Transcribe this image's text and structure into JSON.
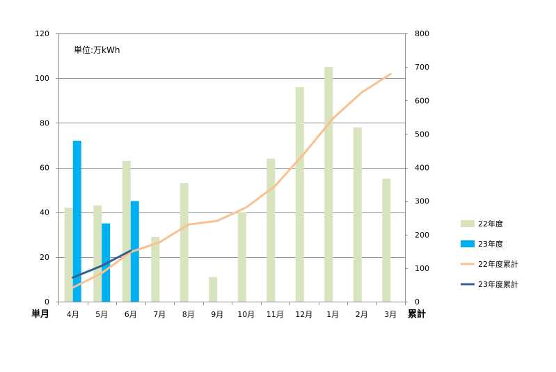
{
  "chart_data": {
    "type": "bar",
    "annotation": "単位:万kWh",
    "left_axis_label": "単月",
    "right_axis_label": "累計",
    "categories": [
      "4月",
      "5月",
      "6月",
      "7月",
      "8月",
      "9月",
      "10月",
      "11月",
      "12月",
      "1月",
      "2月",
      "3月"
    ],
    "y_left": {
      "min": 0,
      "max": 120,
      "ticks": [
        0,
        20,
        40,
        60,
        80,
        100,
        120
      ]
    },
    "y_right": {
      "min": 0,
      "max": 800,
      "ticks": [
        0,
        100,
        200,
        300,
        400,
        500,
        600,
        700,
        800
      ]
    },
    "grid": true,
    "legend_position": "right",
    "bar_series": [
      {
        "name": "22年度",
        "color": "#d7e4bd",
        "axis": "left",
        "values": [
          42,
          43,
          63,
          29,
          53,
          11,
          40,
          64,
          96,
          105,
          78,
          55
        ]
      },
      {
        "name": "23年度",
        "color": "#00b0f0",
        "axis": "left",
        "values": [
          72,
          35,
          45
        ]
      }
    ],
    "line_series": [
      {
        "name": "22年度累計",
        "color": "#fac090",
        "axis": "right",
        "values": [
          42,
          85,
          148,
          177,
          230,
          241,
          281,
          345,
          441,
          546,
          624,
          679
        ]
      },
      {
        "name": "23年度累計",
        "color": "#376092",
        "axis": "right",
        "values": [
          72,
          107,
          152
        ]
      }
    ]
  }
}
